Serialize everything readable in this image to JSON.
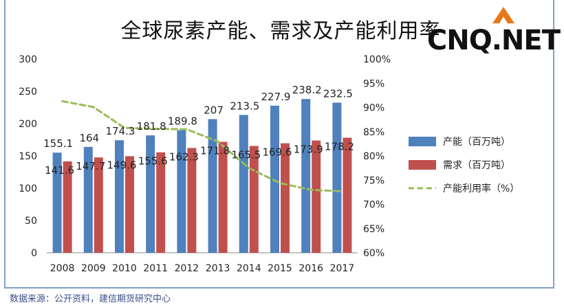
{
  "chart_data": {
    "type": "bar",
    "title": "全球尿素产能、需求及产能利用率",
    "categories": [
      "2008",
      "2009",
      "2010",
      "2011",
      "2012",
      "2013",
      "2014",
      "2015",
      "2016",
      "2017"
    ],
    "series": [
      {
        "name": "产能（百万吨）",
        "type": "bar",
        "color": "#4f81bd",
        "values": [
          155.1,
          164,
          174.3,
          181.8,
          189.8,
          207,
          213.5,
          227.9,
          238.2,
          232.5
        ],
        "labels": [
          "155.1",
          "164",
          "174.3",
          "181.8",
          "189.8",
          "207",
          "213.5",
          "227.9",
          "238.2",
          "232.5"
        ]
      },
      {
        "name": "需求（百万吨）",
        "type": "bar",
        "color": "#c0504d",
        "values": [
          141.6,
          147.7,
          149.6,
          155.6,
          162.3,
          171.8,
          165.5,
          169.6,
          173.9,
          178.2
        ],
        "labels": [
          "141.6",
          "147.7",
          "149.6",
          "155.6",
          "162.3",
          "171.8",
          "165.5",
          "169.6",
          "173.9",
          "178.2"
        ]
      },
      {
        "name": "产能利用率（%）",
        "type": "line",
        "axis": "right",
        "color": "#9bbb59",
        "values": [
          91.3,
          90.1,
          85.8,
          85.6,
          85.5,
          83.0,
          77.5,
          74.4,
          73.0,
          72.7
        ]
      }
    ],
    "y_left": {
      "min": 0,
      "max": 300,
      "ticks": [
        "0",
        "50",
        "100",
        "150",
        "200",
        "250",
        "300"
      ]
    },
    "y_right": {
      "min": 60,
      "max": 100,
      "ticks": [
        "60%",
        "65%",
        "70%",
        "75%",
        "80%",
        "85%",
        "90%",
        "95%",
        "100%"
      ]
    },
    "grid": false,
    "legend": "right"
  },
  "logo": {
    "text": "CNQ.NET",
    "accent": "#e8771c"
  },
  "source": "数据来源：公开资料，建信期货研究中心"
}
